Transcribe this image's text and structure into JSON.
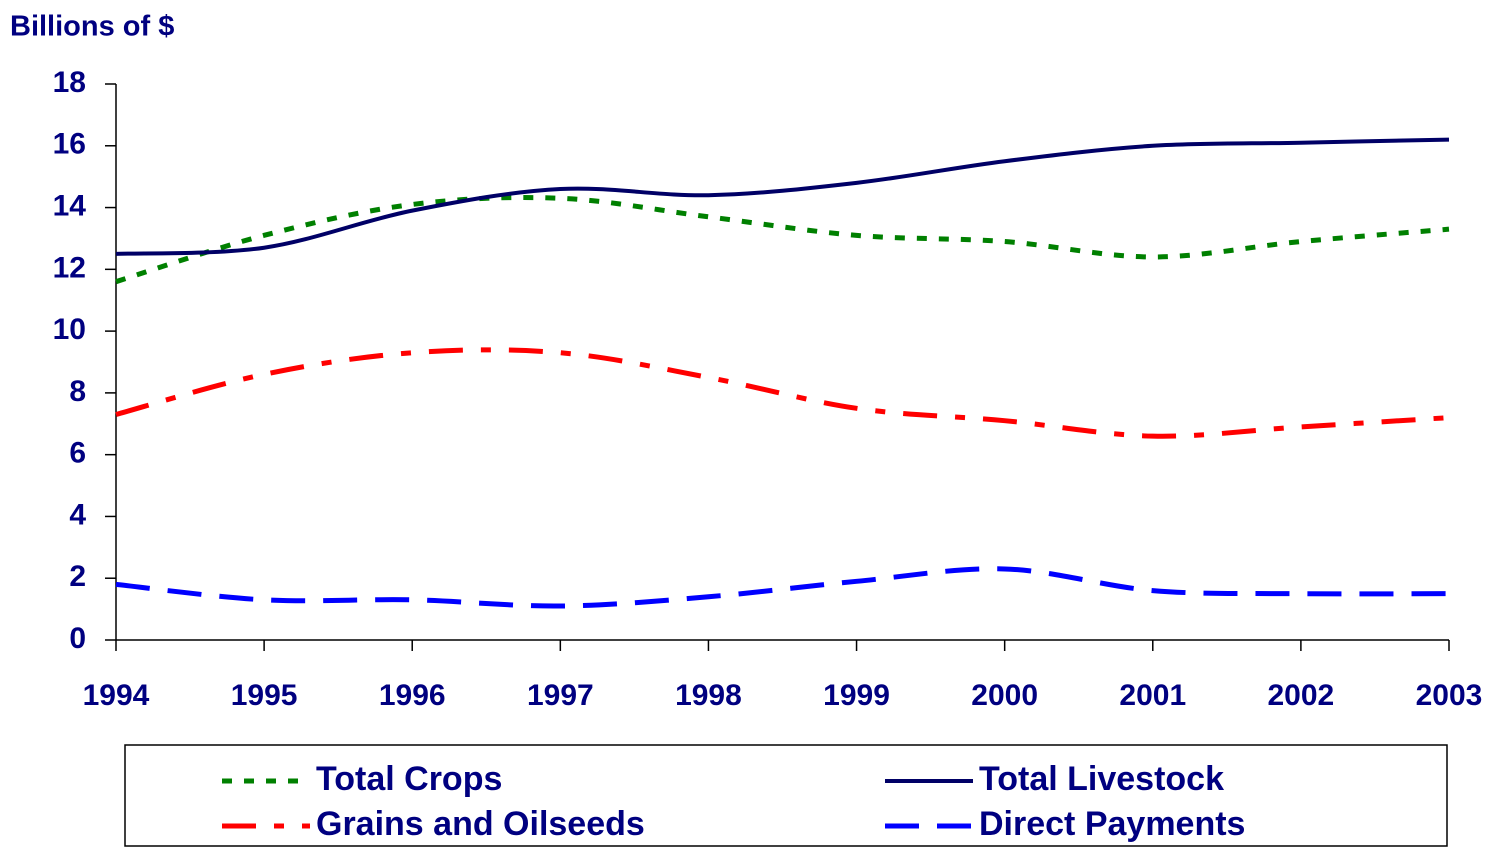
{
  "chart_data": {
    "type": "line",
    "y_axis_label": "Billions of $",
    "x": [
      1994,
      1995,
      1996,
      1997,
      1998,
      1999,
      2000,
      2001,
      2002,
      2003
    ],
    "xlim": [
      1994,
      2003
    ],
    "xticks": [
      1994,
      1995,
      1996,
      1997,
      1998,
      1999,
      2000,
      2001,
      2002,
      2003
    ],
    "ylim": [
      0,
      18
    ],
    "yticks": [
      0,
      2,
      4,
      6,
      8,
      10,
      12,
      14,
      16,
      18
    ],
    "legend": "bottom",
    "series": [
      {
        "name": "Total Crops",
        "color": "#008000",
        "dash": "dotted",
        "values": [
          11.6,
          13.1,
          14.1,
          14.3,
          13.7,
          13.1,
          12.9,
          12.4,
          12.9,
          13.3
        ]
      },
      {
        "name": "Total Livestock",
        "color": "#000066",
        "dash": "solid",
        "values": [
          12.5,
          12.7,
          13.9,
          14.6,
          14.4,
          14.8,
          15.5,
          16.0,
          16.1,
          16.2
        ]
      },
      {
        "name": "Grains and Oilseeds",
        "color": "#ff0000",
        "dash": "dash-dot",
        "values": [
          7.3,
          8.6,
          9.3,
          9.3,
          8.5,
          7.5,
          7.1,
          6.6,
          6.9,
          7.2
        ]
      },
      {
        "name": "Direct Payments",
        "color": "#0000ff",
        "dash": "dashed",
        "values": [
          1.8,
          1.3,
          1.3,
          1.1,
          1.4,
          1.9,
          2.3,
          1.6,
          1.5,
          1.5
        ]
      }
    ]
  }
}
